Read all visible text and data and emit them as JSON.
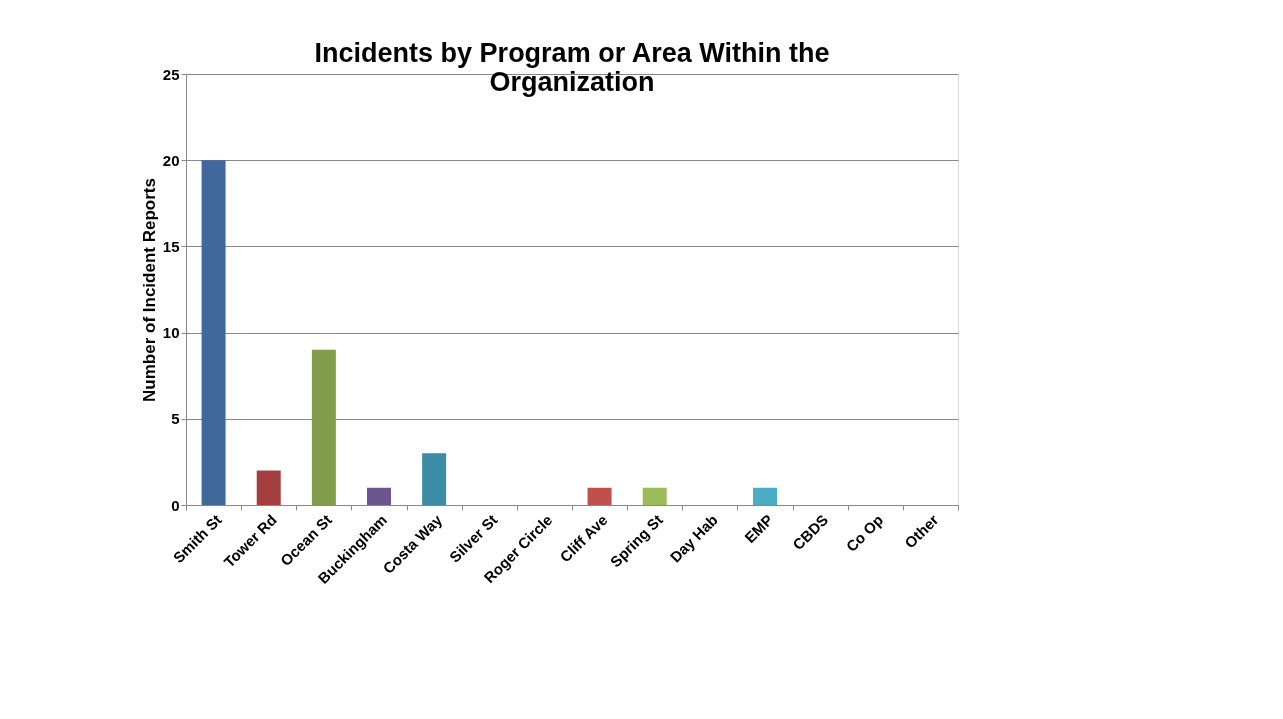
{
  "chart_data": {
    "type": "bar",
    "title": "Incidents by Program or Area Within the Organization",
    "ylabel": "Number of Incident Reports",
    "categories": [
      "Smith St",
      "Tower Rd",
      "Ocean St",
      "Buckingham",
      "Costa Way",
      "Silver St",
      "Roger Circle",
      "Cliff Ave",
      "Spring St",
      "Day Hab",
      "EMP",
      "CBDS",
      "Co Op",
      "Other"
    ],
    "values": [
      20,
      2,
      9,
      1,
      3,
      0,
      0,
      1,
      1,
      0,
      1,
      0,
      0,
      0
    ],
    "colors": [
      "#41689b",
      "#a33f3c",
      "#819d4b",
      "#6b5690",
      "#3b8da5",
      "#d98a3f",
      "#4f81bd",
      "#c0504d",
      "#9bbb59",
      "#8064a2",
      "#4bacc6",
      "#f79646",
      "#2c4d75",
      "#772c2a"
    ],
    "ylim": [
      0,
      25
    ],
    "yticks": [
      0,
      5,
      10,
      15,
      20,
      25
    ],
    "grid": "y"
  }
}
